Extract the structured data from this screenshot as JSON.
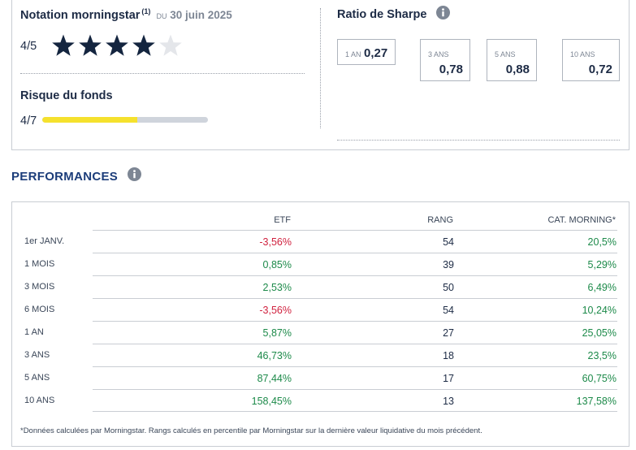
{
  "morningstar": {
    "title": "Notation morningstar",
    "note_marker": "(1)",
    "du": "DU",
    "date": "30 juin 2025",
    "rating_text": "4/5",
    "stars_filled": 4,
    "stars_total": 5
  },
  "risk": {
    "title": "Risque du fonds",
    "value_text": "4/7",
    "level": 4,
    "max": 7
  },
  "sharpe": {
    "title": "Ratio de Sharpe",
    "items": [
      {
        "label": "1 AN",
        "value": "0,27"
      },
      {
        "label": "3 ANS",
        "value": "0,78"
      },
      {
        "label": "5 ANS",
        "value": "0,88"
      },
      {
        "label": "10 ANS",
        "value": "0,72"
      }
    ]
  },
  "performances": {
    "title": "PERFORMANCES",
    "headers": {
      "etf": "ETF",
      "rang": "RANG",
      "cat": "CAT. MORNING*"
    },
    "rows": [
      {
        "label": "1er JANV.",
        "etf": "-3,56%",
        "rang": "54",
        "cat": "20,5%"
      },
      {
        "label": "1 MOIS",
        "etf": "0,85%",
        "rang": "39",
        "cat": "5,29%"
      },
      {
        "label": "3 MOIS",
        "etf": "2,53%",
        "rang": "50",
        "cat": "6,49%"
      },
      {
        "label": "6 MOIS",
        "etf": "-3,56%",
        "rang": "54",
        "cat": "10,24%"
      },
      {
        "label": "1 AN",
        "etf": "5,87%",
        "rang": "27",
        "cat": "25,05%"
      },
      {
        "label": "3 ANS",
        "etf": "46,73%",
        "rang": "18",
        "cat": "23,5%"
      },
      {
        "label": "5 ANS",
        "etf": "87,44%",
        "rang": "17",
        "cat": "60,75%"
      },
      {
        "label": "10 ANS",
        "etf": "158,45%",
        "rang": "13",
        "cat": "137,58%"
      }
    ],
    "footnote": "*Données calculées par Morningstar. Rangs calculés en percentile par Morningstar sur la dernière valeur liquidative du mois précédent."
  },
  "colors": {
    "positive": "#1d8a4a",
    "negative": "#d0223f",
    "star_filled": "#14253f",
    "star_empty": "#e4e6ea",
    "risk_fill": "#f5e12d",
    "risk_track": "#cfd4dc",
    "info_icon": "#7d8694"
  },
  "icons": {
    "info": "info-icon",
    "star": "star-icon"
  }
}
